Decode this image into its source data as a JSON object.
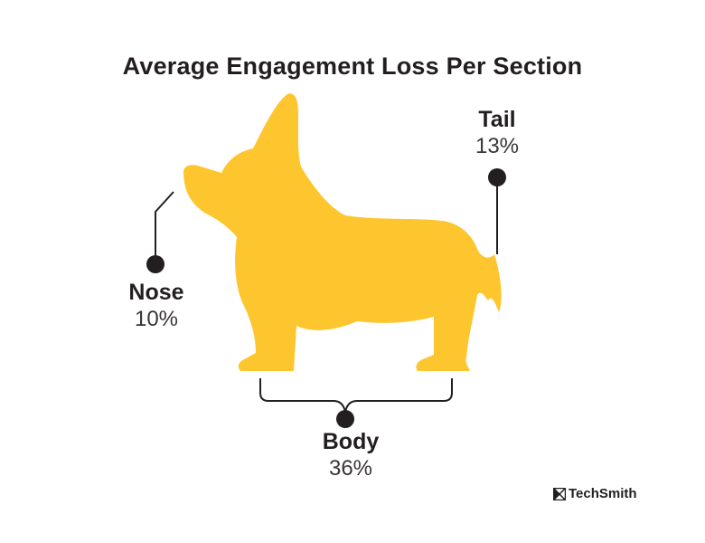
{
  "title": "Average Engagement Loss Per Section",
  "sections": [
    {
      "name": "Nose",
      "value_label": "10%",
      "value": 10
    },
    {
      "name": "Tail",
      "value_label": "13%",
      "value": 13
    },
    {
      "name": "Body",
      "value_label": "36%",
      "value": 36
    }
  ],
  "brand": "TechSmith",
  "colors": {
    "dog_fill": "#fec62e",
    "ink": "#231f20",
    "background": "#ffffff"
  },
  "icons": [
    "corgi-silhouette-icon",
    "techsmith-logo-icon"
  ]
}
